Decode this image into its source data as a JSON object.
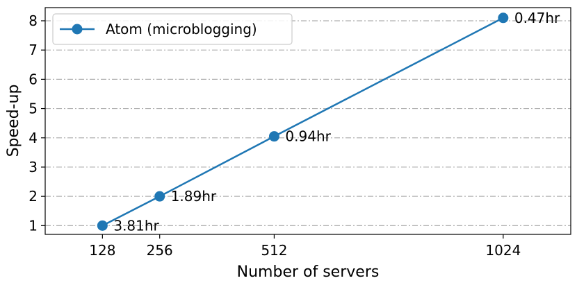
{
  "chart_data": {
    "type": "line",
    "title": "",
    "xlabel": "Number of servers",
    "ylabel": "Speed-up",
    "x": [
      128,
      256,
      512,
      1024
    ],
    "x_ticks": [
      "128",
      "256",
      "512",
      "1024"
    ],
    "y_ticks": [
      "1",
      "2",
      "3",
      "4",
      "5",
      "6",
      "7",
      "8"
    ],
    "xlim": [
      0,
      1175
    ],
    "ylim": [
      0.7,
      8.45
    ],
    "grid": "horizontal dash-dot",
    "legend_position": "top-left",
    "series": [
      {
        "name": "Atom (microblogging)",
        "color": "#1f77b4",
        "marker": "circle",
        "values": [
          1,
          2,
          4.05,
          8.1
        ],
        "labels": [
          "3.81hr",
          "1.89hr",
          "0.94hr",
          "0.47hr"
        ]
      }
    ]
  }
}
